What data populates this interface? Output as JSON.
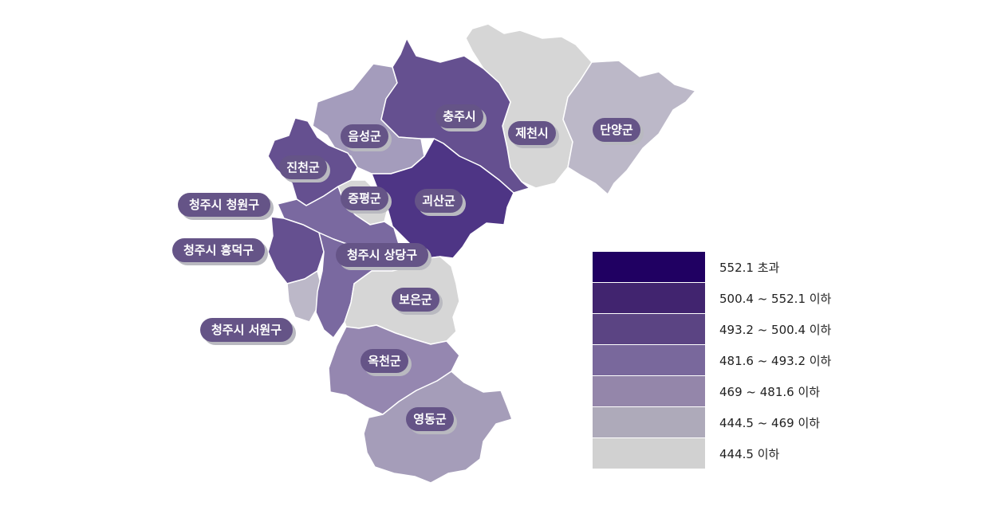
{
  "regions": [
    {
      "id": "chungju",
      "label": "충주시",
      "color": "#655090"
    },
    {
      "id": "jecheon",
      "label": "제천시",
      "color": "#d6d6d6"
    },
    {
      "id": "danyang",
      "label": "단양군",
      "color": "#bcb8c8"
    },
    {
      "id": "eumseong",
      "label": "음성군",
      "color": "#a49cbc"
    },
    {
      "id": "jincheon",
      "label": "진천군",
      "color": "#655090"
    },
    {
      "id": "jeungpyeong",
      "label": "증평군",
      "color": "#d6d6d6"
    },
    {
      "id": "goesan",
      "label": "괴산군",
      "color": "#4e3585"
    },
    {
      "id": "cheongwon",
      "label": "청주시 청원구",
      "color": "#7a69a0"
    },
    {
      "id": "heungdeok",
      "label": "청주시 흥덕구",
      "color": "#655090"
    },
    {
      "id": "sangdang",
      "label": "청주시 상당구",
      "color": "#7a69a0"
    },
    {
      "id": "seowon",
      "label": "청주시 서원구",
      "color": "#bcb8c8"
    },
    {
      "id": "boeun",
      "label": "보은군",
      "color": "#d6d6d6"
    },
    {
      "id": "okcheon",
      "label": "옥천군",
      "color": "#9587b0"
    },
    {
      "id": "yeongdong",
      "label": "영동군",
      "color": "#a59db9"
    }
  ],
  "legend": [
    {
      "label": "552.1 초과",
      "color": "#200062"
    },
    {
      "label": "500.4 ~ 552.1 이하",
      "color": "#41246f"
    },
    {
      "label": "493.2 ~ 500.4 이하",
      "color": "#5b4483"
    },
    {
      "label": "481.6 ~ 493.2 이하",
      "color": "#79689c"
    },
    {
      "label": "469 ~ 481.6 이하",
      "color": "#9486aa"
    },
    {
      "label": "444.5 ~ 469 이하",
      "color": "#aeaaba"
    },
    {
      "label": "444.5 이하",
      "color": "#d1d1d1"
    }
  ]
}
